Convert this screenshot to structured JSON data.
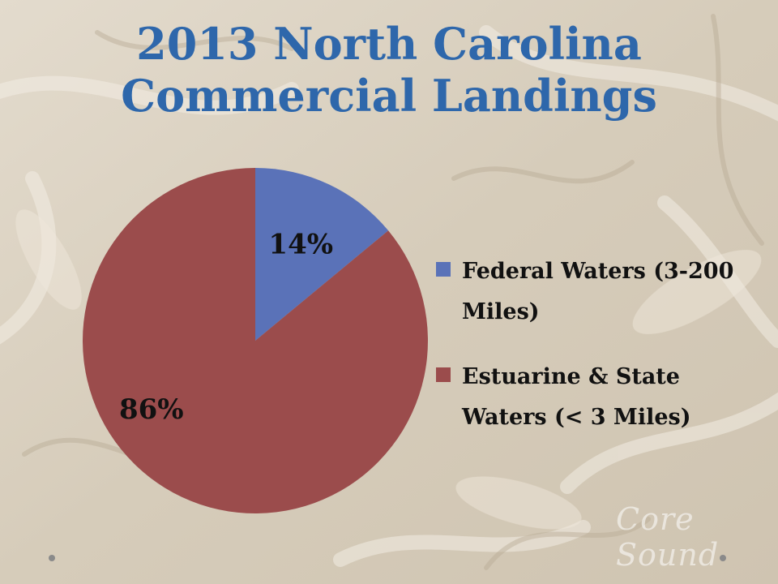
{
  "title_lines": [
    "2013 North Carolina",
    "Commercial Landings"
  ],
  "watermark": "Core Sound",
  "colors": {
    "title": "#2e67ab",
    "federal": "#5a72b8",
    "estuarine": "#9b4c4c",
    "background": "#d9cfbf"
  },
  "chart_data": {
    "type": "pie",
    "title": "2013 North Carolina Commercial Landings",
    "legend_position": "right",
    "slices": [
      {
        "label": "Federal Waters (3-200 Miles)",
        "value": 14,
        "display": "14%",
        "color": "#5a72b8"
      },
      {
        "label": "Estuarine & State Waters (< 3 Miles)",
        "value": 86,
        "display": "86%",
        "color": "#9b4c4c"
      }
    ]
  }
}
